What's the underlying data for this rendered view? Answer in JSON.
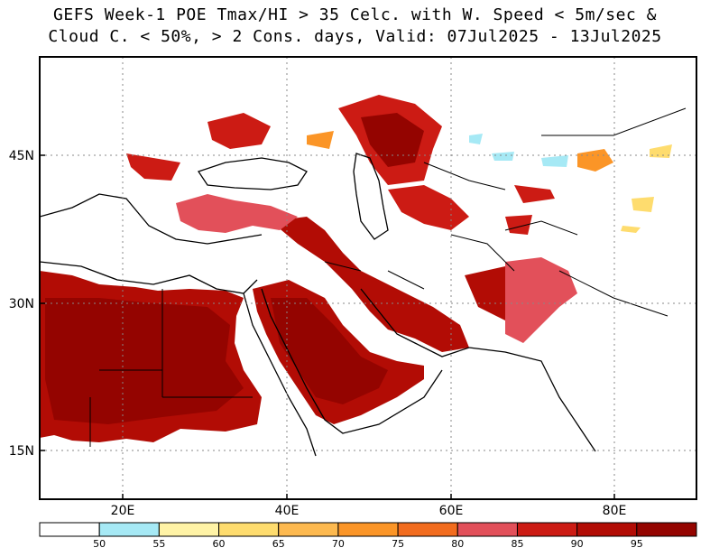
{
  "title": {
    "line1": "GEFS Week-1 POE Tmax/HI > 35 Celc. with W. Speed < 5m/sec &",
    "line2": "Cloud C. < 50%, > 2 Cons. days, Valid: 07Jul2025 - 13Jul2025"
  },
  "axes": {
    "x_ticks": [
      {
        "value": 20,
        "label": "20E"
      },
      {
        "value": 40,
        "label": "40E"
      },
      {
        "value": 60,
        "label": "60E"
      },
      {
        "value": 80,
        "label": "80E"
      }
    ],
    "y_ticks": [
      {
        "value": 45,
        "label": "45N"
      },
      {
        "value": 30,
        "label": "30N"
      },
      {
        "value": 15,
        "label": "15N"
      }
    ],
    "lon_range": [
      10,
      90
    ],
    "lat_range": [
      10,
      55
    ],
    "grid": "dotted"
  },
  "colorbar": {
    "colors": [
      "#ffffff",
      "#a6e9f5",
      "#fff3a6",
      "#fedc6e",
      "#fdb94f",
      "#fb9527",
      "#f26c1e",
      "#e2505a",
      "#cc1b14",
      "#b20c05",
      "#940400"
    ],
    "labels": [
      "50",
      "55",
      "60",
      "65",
      "70",
      "75",
      "80",
      "85",
      "90",
      "95"
    ]
  }
}
